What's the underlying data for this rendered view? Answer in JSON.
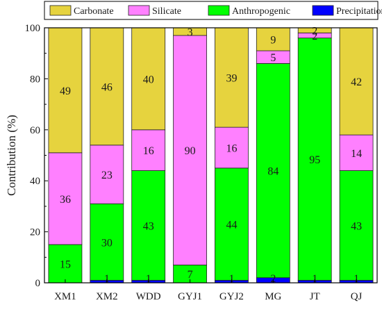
{
  "chart_data": {
    "type": "bar",
    "stacked": true,
    "orientation": "vertical",
    "title": "",
    "xlabel": "",
    "ylabel": "Contribution (%)",
    "ylim": [
      0,
      100
    ],
    "yticks": [
      0,
      20,
      40,
      60,
      80,
      100
    ],
    "grid": false,
    "legend_position": "top",
    "categories": [
      "XM1",
      "XM2",
      "WDD",
      "GYJ1",
      "GYJ2",
      "MG",
      "JT",
      "QJ"
    ],
    "series": [
      {
        "name": "Precipitation",
        "color": "#0000ff",
        "values": [
          0,
          1,
          1,
          0,
          1,
          2,
          1,
          1
        ],
        "labels": [
          "",
          "1",
          "1",
          "",
          "1",
          "2",
          "1",
          "1"
        ]
      },
      {
        "name": "Anthropogenic",
        "color": "#00ff00",
        "values": [
          15,
          30,
          43,
          7,
          44,
          84,
          95,
          43
        ],
        "labels": [
          "15",
          "30",
          "43",
          "7",
          "44",
          "84",
          "95",
          "43"
        ]
      },
      {
        "name": "Silicate",
        "color": "#ff80ff",
        "values": [
          36,
          23,
          16,
          90,
          16,
          5,
          2,
          14
        ],
        "labels": [
          "36",
          "23",
          "16",
          "90",
          "16",
          "5",
          "2",
          "14"
        ]
      },
      {
        "name": "Carbonate",
        "color": "#e6d33e",
        "values": [
          49,
          46,
          40,
          3,
          39,
          9,
          2,
          42
        ],
        "labels": [
          "49",
          "46",
          "40",
          "3",
          "39",
          "9",
          "2",
          "42"
        ]
      }
    ],
    "legend_order": [
      "Carbonate",
      "Silicate",
      "Anthropogenic",
      "Precipitation"
    ]
  }
}
